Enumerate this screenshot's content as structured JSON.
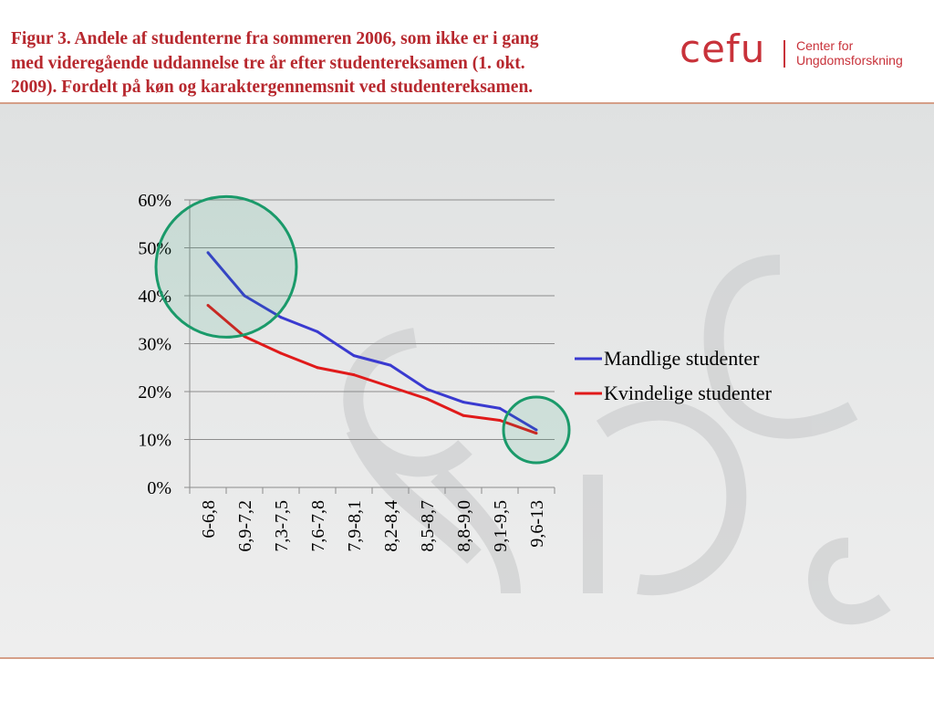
{
  "slide": {
    "title_lines": [
      "Figur 3. Andele af studenterne fra sommeren 2006, som ikke er i gang",
      "med videregående uddannelse tre år efter studentereksamen (1. okt.",
      "2009). Fordelt på køn og karaktergennemsnit ved studentereksamen."
    ],
    "title_color": "#b7282e"
  },
  "logo": {
    "wordmark": "cefu",
    "subline_1": "Center for",
    "subline_2": "Ungdomsforskning",
    "color": "#c8323a"
  },
  "chart_data": {
    "type": "line",
    "title": "",
    "xlabel": "",
    "ylabel": "",
    "categories": [
      "6-6,8",
      "6,9-7,2",
      "7,3-7,5",
      "7,6-7,8",
      "7,9-8,1",
      "8,2-8,4",
      "8,5-8,7",
      "8,8-9,0",
      "9,1-9,5",
      "9,6-13"
    ],
    "series": [
      {
        "name": "Mandlige studenter",
        "color": "#3a3ad0",
        "values": [
          0.49,
          0.4,
          0.355,
          0.325,
          0.275,
          0.255,
          0.205,
          0.178,
          0.165,
          0.12
        ]
      },
      {
        "name": "Kvindelige studenter",
        "color": "#e01a1a",
        "values": [
          0.38,
          0.315,
          0.28,
          0.25,
          0.235,
          0.21,
          0.185,
          0.15,
          0.14,
          0.113
        ]
      }
    ],
    "ylim": [
      0,
      0.6
    ],
    "yticks": [
      "0%",
      "10%",
      "20%",
      "30%",
      "40%",
      "50%",
      "60%"
    ],
    "grid": true,
    "legend_position": "right",
    "highlight_circle_color": "#1a9a6a"
  }
}
